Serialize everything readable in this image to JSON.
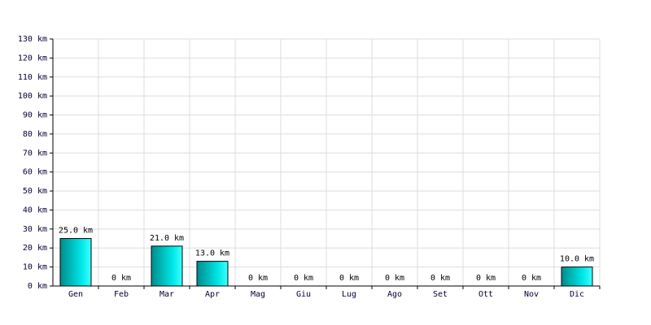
{
  "chart_data": {
    "type": "bar",
    "categories": [
      "Gen",
      "Feb",
      "Mar",
      "Apr",
      "Mag",
      "Giu",
      "Lug",
      "Ago",
      "Set",
      "Ott",
      "Nov",
      "Dic"
    ],
    "values": [
      25,
      0,
      21,
      13,
      0,
      0,
      0,
      0,
      0,
      0,
      0,
      10
    ],
    "value_labels": [
      "25.0 km",
      "0 km",
      "21.0 km",
      "13.0 km",
      "0 km",
      "0 km",
      "0 km",
      "0 km",
      "0 km",
      "0 km",
      "0 km",
      "10.0 km"
    ],
    "ylim": [
      0,
      130
    ],
    "yticks": [
      {
        "value": 0,
        "label": "0 km"
      },
      {
        "value": 10,
        "label": "10 km"
      },
      {
        "value": 20,
        "label": "20 km"
      },
      {
        "value": 30,
        "label": "30 km"
      },
      {
        "value": 40,
        "label": "40 km"
      },
      {
        "value": 50,
        "label": "50 km"
      },
      {
        "value": 60,
        "label": "60 km"
      },
      {
        "value": 70,
        "label": "70 km"
      },
      {
        "value": 80,
        "label": "80 km"
      },
      {
        "value": 90,
        "label": "90 km"
      },
      {
        "value": 100,
        "label": "100 km"
      },
      {
        "value": 110,
        "label": "110 km"
      },
      {
        "value": 120,
        "label": "120 km"
      },
      {
        "value": 130,
        "label": "130 km"
      }
    ],
    "grid": true,
    "color": "#00cccc"
  }
}
